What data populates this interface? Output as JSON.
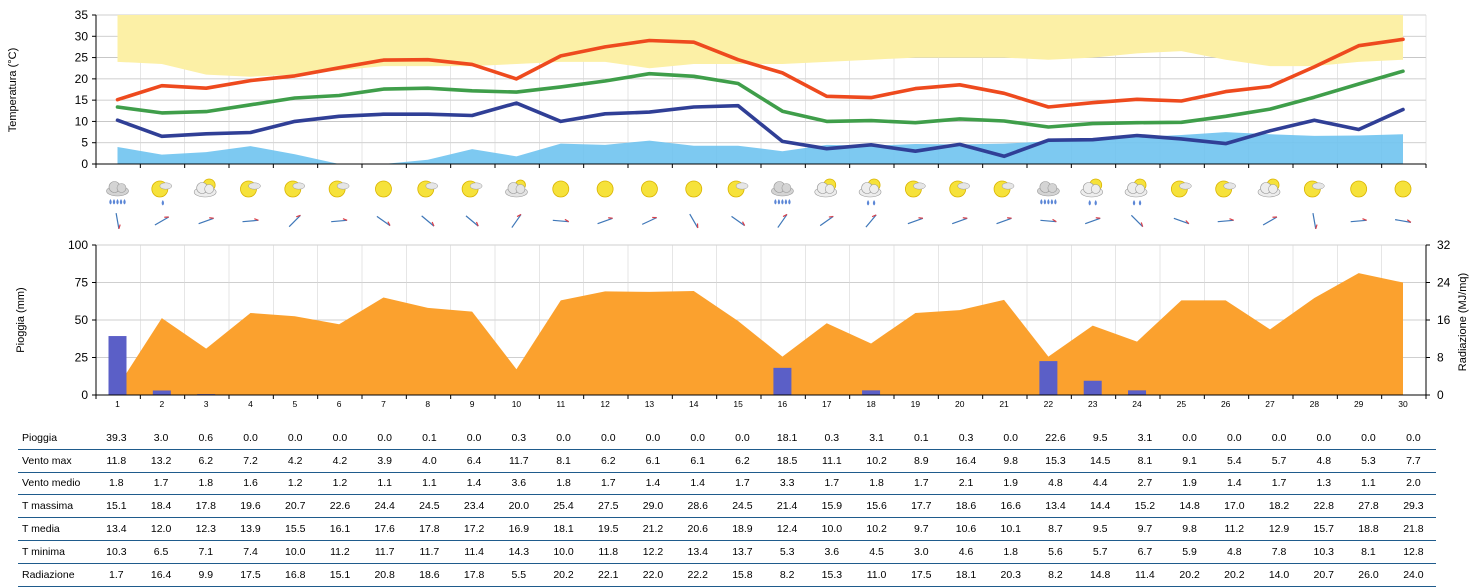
{
  "days": [
    "1",
    "2",
    "3",
    "4",
    "5",
    "6",
    "7",
    "8",
    "9",
    "10",
    "11",
    "12",
    "13",
    "14",
    "15",
    "16",
    "17",
    "18",
    "19",
    "20",
    "21",
    "22",
    "23",
    "24",
    "25",
    "26",
    "27",
    "28",
    "29",
    "30"
  ],
  "icons": [
    "rain-cloud",
    "sun-cloud-drop",
    "cloud-sun",
    "sun-cloud",
    "sun-cloud",
    "sun-cloud",
    "sun",
    "sun-cloud",
    "sun-cloud",
    "cloud",
    "sun",
    "sun",
    "sun",
    "sun",
    "sun-cloud",
    "rain-cloud",
    "cloud-sun",
    "cloud-sun-drop",
    "sun-cloud",
    "sun-cloud",
    "sun-cloud",
    "rain-cloud",
    "cloud-sun-drop",
    "cloud-sun-drop",
    "sun-cloud",
    "sun-cloud",
    "cloud-sun",
    "sun-cloud",
    "sun",
    "sun"
  ],
  "chart_data": [
    {
      "type": "line",
      "ylabel": "Temperatura (°C)",
      "ylim": [
        0,
        35
      ],
      "yticks": [
        0,
        5,
        10,
        15,
        20,
        25,
        30,
        35
      ],
      "x": [
        1,
        2,
        3,
        4,
        5,
        6,
        7,
        8,
        9,
        10,
        11,
        12,
        13,
        14,
        15,
        16,
        17,
        18,
        19,
        20,
        21,
        22,
        23,
        24,
        25,
        26,
        27,
        28,
        29,
        30
      ],
      "band": {
        "low": [
          24,
          23.5,
          21,
          20.5,
          21,
          22,
          23,
          23,
          23,
          23.5,
          24,
          24,
          22.5,
          23.5,
          23.5,
          23.5,
          24,
          24.5,
          25,
          25,
          25,
          24.5,
          25,
          26,
          26.5,
          24.5,
          23,
          23,
          24,
          24.5
        ],
        "high": 35,
        "color": "#fcf0a6"
      },
      "area": {
        "values": [
          4,
          2.2,
          2.8,
          4.2,
          2.3,
          0,
          0,
          1,
          3.5,
          1.8,
          4.8,
          4.5,
          5.5,
          4.3,
          4.3,
          3,
          4.5,
          4.3,
          4.7,
          4.6,
          4.8,
          5.3,
          5.8,
          6.3,
          6.8,
          7.5,
          7,
          6.6,
          6.7,
          7
        ],
        "color": "#6fc3ef"
      },
      "series": [
        {
          "name": "T massima",
          "color": "#ee4a1e",
          "values": [
            15.1,
            18.4,
            17.8,
            19.6,
            20.7,
            22.6,
            24.4,
            24.5,
            23.4,
            20.0,
            25.4,
            27.5,
            29.0,
            28.6,
            24.5,
            21.4,
            15.9,
            15.6,
            17.7,
            18.6,
            16.6,
            13.4,
            14.4,
            15.2,
            14.8,
            17.0,
            18.2,
            22.8,
            27.8,
            29.3
          ]
        },
        {
          "name": "T media",
          "color": "#3f9e4a",
          "values": [
            13.4,
            12.0,
            12.3,
            13.9,
            15.5,
            16.1,
            17.6,
            17.8,
            17.2,
            16.9,
            18.1,
            19.5,
            21.2,
            20.6,
            18.9,
            12.4,
            10.0,
            10.2,
            9.7,
            10.6,
            10.1,
            8.7,
            9.5,
            9.7,
            9.8,
            11.2,
            12.9,
            15.7,
            18.8,
            21.8
          ]
        },
        {
          "name": "T minima",
          "color": "#303f96",
          "values": [
            10.3,
            6.5,
            7.1,
            7.4,
            10.0,
            11.2,
            11.7,
            11.7,
            11.4,
            14.3,
            10.0,
            11.8,
            12.2,
            13.4,
            13.7,
            5.3,
            3.6,
            4.5,
            3.0,
            4.6,
            1.8,
            5.6,
            5.7,
            6.7,
            5.9,
            4.8,
            7.8,
            10.3,
            8.1,
            12.8
          ]
        }
      ]
    },
    {
      "type": "bar",
      "ylabel": "Pioggia (mm)",
      "y2label": "Radiazione (MJ/mq)",
      "ylim": [
        0,
        100
      ],
      "yticks": [
        0,
        25,
        50,
        75,
        100
      ],
      "y2lim": [
        0,
        32
      ],
      "y2ticks": [
        0,
        8,
        16,
        24,
        32
      ],
      "x": [
        1,
        2,
        3,
        4,
        5,
        6,
        7,
        8,
        9,
        10,
        11,
        12,
        13,
        14,
        15,
        16,
        17,
        18,
        19,
        20,
        21,
        22,
        23,
        24,
        25,
        26,
        27,
        28,
        29,
        30
      ],
      "bar_color": "#5b5fc7",
      "area_color": "#fba12e",
      "rain": [
        39.3,
        3.0,
        0.6,
        0.0,
        0.0,
        0.0,
        0.0,
        0.1,
        0.0,
        0.3,
        0.0,
        0.0,
        0.0,
        0.0,
        0.0,
        18.1,
        0.3,
        3.1,
        0.1,
        0.3,
        0.0,
        22.6,
        9.5,
        3.1,
        0.0,
        0.0,
        0.0,
        0.0,
        0.0,
        0.0
      ],
      "radiation": [
        1.7,
        16.4,
        9.9,
        17.5,
        16.8,
        15.1,
        20.8,
        18.6,
        17.8,
        5.5,
        20.2,
        22.1,
        22.0,
        22.2,
        15.8,
        8.2,
        15.3,
        11.0,
        17.5,
        18.1,
        20.3,
        8.2,
        14.8,
        11.4,
        20.2,
        20.2,
        14.0,
        20.7,
        26.0,
        24.0
      ]
    },
    {
      "type": "table",
      "rows": [
        {
          "label": "Pioggia",
          "cells": [
            "39.3",
            "3.0",
            "0.6",
            "0.0",
            "0.0",
            "0.0",
            "0.0",
            "0.1",
            "0.0",
            "0.3",
            "0.0",
            "0.0",
            "0.0",
            "0.0",
            "0.0",
            "18.1",
            "0.3",
            "3.1",
            "0.1",
            "0.3",
            "0.0",
            "22.6",
            "9.5",
            "3.1",
            "0.0",
            "0.0",
            "0.0",
            "0.0",
            "0.0",
            "0.0"
          ]
        },
        {
          "label": "Vento max",
          "cells": [
            "11.8",
            "13.2",
            "6.2",
            "7.2",
            "4.2",
            "4.2",
            "3.9",
            "4.0",
            "6.4",
            "11.7",
            "8.1",
            "6.2",
            "6.1",
            "6.1",
            "6.2",
            "18.5",
            "11.1",
            "10.2",
            "8.9",
            "16.4",
            "9.8",
            "15.3",
            "14.5",
            "8.1",
            "9.1",
            "5.4",
            "5.7",
            "4.8",
            "5.3",
            "7.7"
          ]
        },
        {
          "label": "Vento medio",
          "cells": [
            "1.8",
            "1.7",
            "1.8",
            "1.6",
            "1.2",
            "1.2",
            "1.1",
            "1.1",
            "1.4",
            "3.6",
            "1.8",
            "1.7",
            "1.4",
            "1.4",
            "1.7",
            "3.3",
            "1.7",
            "1.8",
            "1.7",
            "2.1",
            "1.9",
            "4.8",
            "4.4",
            "2.7",
            "1.9",
            "1.4",
            "1.7",
            "1.3",
            "1.1",
            "2.0"
          ]
        },
        {
          "label": "T massima",
          "cells": [
            "15.1",
            "18.4",
            "17.8",
            "19.6",
            "20.7",
            "22.6",
            "24.4",
            "24.5",
            "23.4",
            "20.0",
            "25.4",
            "27.5",
            "29.0",
            "28.6",
            "24.5",
            "21.4",
            "15.9",
            "15.6",
            "17.7",
            "18.6",
            "16.6",
            "13.4",
            "14.4",
            "15.2",
            "14.8",
            "17.0",
            "18.2",
            "22.8",
            "27.8",
            "29.3"
          ]
        },
        {
          "label": "T media",
          "cells": [
            "13.4",
            "12.0",
            "12.3",
            "13.9",
            "15.5",
            "16.1",
            "17.6",
            "17.8",
            "17.2",
            "16.9",
            "18.1",
            "19.5",
            "21.2",
            "20.6",
            "18.9",
            "12.4",
            "10.0",
            "10.2",
            "9.7",
            "10.6",
            "10.1",
            "8.7",
            "9.5",
            "9.7",
            "9.8",
            "11.2",
            "12.9",
            "15.7",
            "18.8",
            "21.8"
          ]
        },
        {
          "label": "T minima",
          "cells": [
            "10.3",
            "6.5",
            "7.1",
            "7.4",
            "10.0",
            "11.2",
            "11.7",
            "11.7",
            "11.4",
            "14.3",
            "10.0",
            "11.8",
            "12.2",
            "13.4",
            "13.7",
            "5.3",
            "3.6",
            "4.5",
            "3.0",
            "4.6",
            "1.8",
            "5.6",
            "5.7",
            "6.7",
            "5.9",
            "4.8",
            "7.8",
            "10.3",
            "8.1",
            "12.8"
          ]
        },
        {
          "label": "Radiazione",
          "cells": [
            "1.7",
            "16.4",
            "9.9",
            "17.5",
            "16.8",
            "15.1",
            "20.8",
            "18.6",
            "17.8",
            "5.5",
            "20.2",
            "22.1",
            "22.0",
            "22.2",
            "15.8",
            "8.2",
            "15.3",
            "11.0",
            "17.5",
            "18.1",
            "20.3",
            "8.2",
            "14.8",
            "11.4",
            "20.2",
            "20.2",
            "14.0",
            "20.7",
            "26.0",
            "24.0"
          ]
        }
      ]
    }
  ]
}
